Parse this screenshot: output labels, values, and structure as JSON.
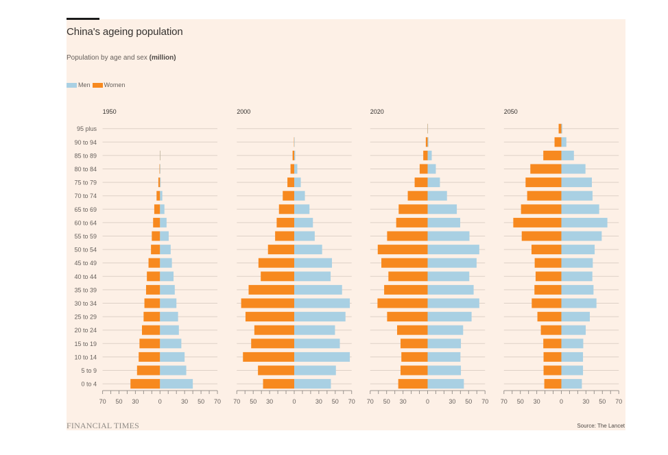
{
  "header": {
    "title": "China's ageing population",
    "subtitle_main": "Population by age and sex ",
    "subtitle_unit": "(million)"
  },
  "legend": [
    {
      "label": "Men",
      "color": "#a9d0e3"
    },
    {
      "label": "Women",
      "color": "#f7891f"
    }
  ],
  "footer": {
    "logo": "FINANCIAL TIMES",
    "source": "Source: The Lancet"
  },
  "colors": {
    "background": "#fdf0e6",
    "men": "#a9d0e3",
    "women": "#f7891f",
    "grid": "#ddd0c6",
    "axis": "#9a948f",
    "text": "#66605c"
  },
  "chart_data": {
    "type": "bar",
    "orientation": "horizontal-pyramid",
    "title": "China's ageing population",
    "subtitle": "Population by age and sex (million)",
    "xlabel": "",
    "ylabel": "",
    "legend_position": "top-left",
    "legend": [
      "Men",
      "Women"
    ],
    "grid": true,
    "xlim": [
      -70,
      70
    ],
    "xticks": [
      -70,
      -60,
      -50,
      -40,
      -30,
      -20,
      -10,
      0,
      10,
      20,
      30,
      40,
      50,
      60,
      70
    ],
    "xtick_labels": [
      {
        "value": -70,
        "label": "70"
      },
      {
        "value": -50,
        "label": "50"
      },
      {
        "value": -30,
        "label": "30"
      },
      {
        "value": 0,
        "label": "0"
      },
      {
        "value": 30,
        "label": "30"
      },
      {
        "value": 50,
        "label": "50"
      },
      {
        "value": 70,
        "label": "70"
      }
    ],
    "categories": [
      "95 plus",
      "90 to 94",
      "85 to 89",
      "80 to 84",
      "75 to 79",
      "70 to 74",
      "65 to 69",
      "60 to 64",
      "55 to 59",
      "50 to 54",
      "45 to 49",
      "40 to 44",
      "35 to 39",
      "30 to 34",
      "25 to 29",
      "20 to 24",
      "15 to 19",
      "10 to 14",
      "5 to 9",
      "0 to 4"
    ],
    "panels": [
      {
        "title": "1950",
        "series": [
          {
            "name": "Women",
            "side": "left",
            "values": [
              0,
              0,
              0.2,
              0.6,
              2,
              4.2,
              7,
              8.4,
              10,
              11,
              14,
              16,
              17,
              19,
              20,
              22,
              25,
              26,
              28,
              36
            ]
          },
          {
            "name": "Men",
            "side": "right",
            "values": [
              0,
              0,
              0.1,
              0.3,
              0.8,
              2.8,
              5.4,
              8,
              10.6,
              13,
              14.5,
              16.5,
              18,
              20,
              22,
              23,
              26,
              30,
              32,
              40
            ]
          }
        ]
      },
      {
        "title": "2000",
        "series": [
          {
            "name": "Women",
            "side": "left",
            "values": [
              0,
              0.3,
              2,
              4.5,
              8.3,
              14,
              18.6,
              21.4,
              23.3,
              32,
              43.6,
              40.8,
              55.6,
              64.7,
              59.4,
              48.6,
              52.5,
              62.5,
              44.2,
              38
            ]
          },
          {
            "name": "Men",
            "side": "right",
            "values": [
              0,
              0.1,
              1.2,
              3.8,
              8,
              13,
              18.6,
              22.8,
              25,
              34,
              46,
              44.4,
              58.3,
              67.8,
              62.5,
              49.7,
              55.6,
              67.8,
              50.8,
              44.7
            ]
          }
        ]
      },
      {
        "title": "2020",
        "series": [
          {
            "name": "Women",
            "side": "left",
            "values": [
              0.3,
              2.2,
              5.3,
              9.7,
              15.8,
              24.2,
              35.3,
              38.3,
              49.4,
              60.8,
              56.4,
              47.8,
              53,
              61.1,
              49.4,
              37.2,
              33,
              32,
              33,
              35.8
            ]
          },
          {
            "name": "Men",
            "side": "right",
            "values": [
              0.1,
              1,
              5,
              10,
              15,
              23.6,
              35.6,
              39.7,
              51,
              63,
              59.7,
              50.8,
              56.1,
              63,
              53.6,
              43.3,
              40.6,
              40,
              40.6,
              44.2
            ]
          }
        ]
      },
      {
        "title": "2050",
        "series": [
          {
            "name": "Women",
            "side": "left",
            "values": [
              3.3,
              8.3,
              22,
              37.8,
              43.6,
              41.7,
              49.2,
              58.6,
              48.3,
              36.4,
              32.5,
              31.4,
              32.8,
              36.1,
              29.2,
              25,
              22,
              21.7,
              21.7,
              20.8
            ]
          },
          {
            "name": "Men",
            "side": "right",
            "values": [
              1.1,
              6.1,
              15.3,
              29.4,
              37.2,
              38,
              46.1,
              56.1,
              49.2,
              40.6,
              38.3,
              37.8,
              39.2,
              42.8,
              34.7,
              29.7,
              26.7,
              26.4,
              26.4,
              25
            ]
          }
        ]
      }
    ]
  }
}
